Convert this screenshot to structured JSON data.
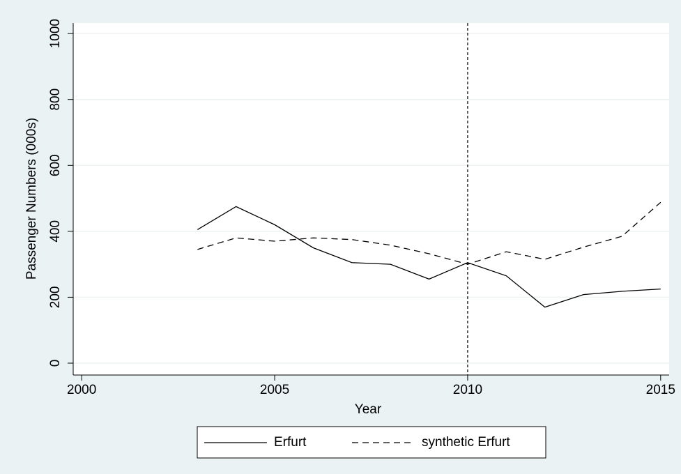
{
  "chart_data": {
    "type": "line",
    "xlabel": "Year",
    "ylabel": "Passenger Numbers (000s)",
    "x": [
      2003,
      2004,
      2005,
      2006,
      2007,
      2008,
      2009,
      2010,
      2011,
      2012,
      2013,
      2014,
      2015
    ],
    "series": [
      {
        "name": "Erfurt",
        "color": "#000000",
        "dash": "none",
        "values": [
          405,
          475,
          420,
          350,
          305,
          300,
          255,
          305,
          265,
          170,
          208,
          218,
          225
        ]
      },
      {
        "name": "synthetic Erfurt",
        "color": "#000000",
        "dash": "9 6",
        "values": [
          345,
          380,
          370,
          380,
          375,
          358,
          332,
          300,
          338,
          315,
          352,
          385,
          488
        ]
      }
    ],
    "xlim": [
      1999.78,
      2015.22
    ],
    "xticks": [
      2000,
      2005,
      2010,
      2015
    ],
    "ylim": [
      -36,
      1032
    ],
    "yticks": [
      0,
      200,
      400,
      600,
      800,
      1000
    ],
    "vline": 2010,
    "grid": true,
    "legend": "bottom"
  }
}
